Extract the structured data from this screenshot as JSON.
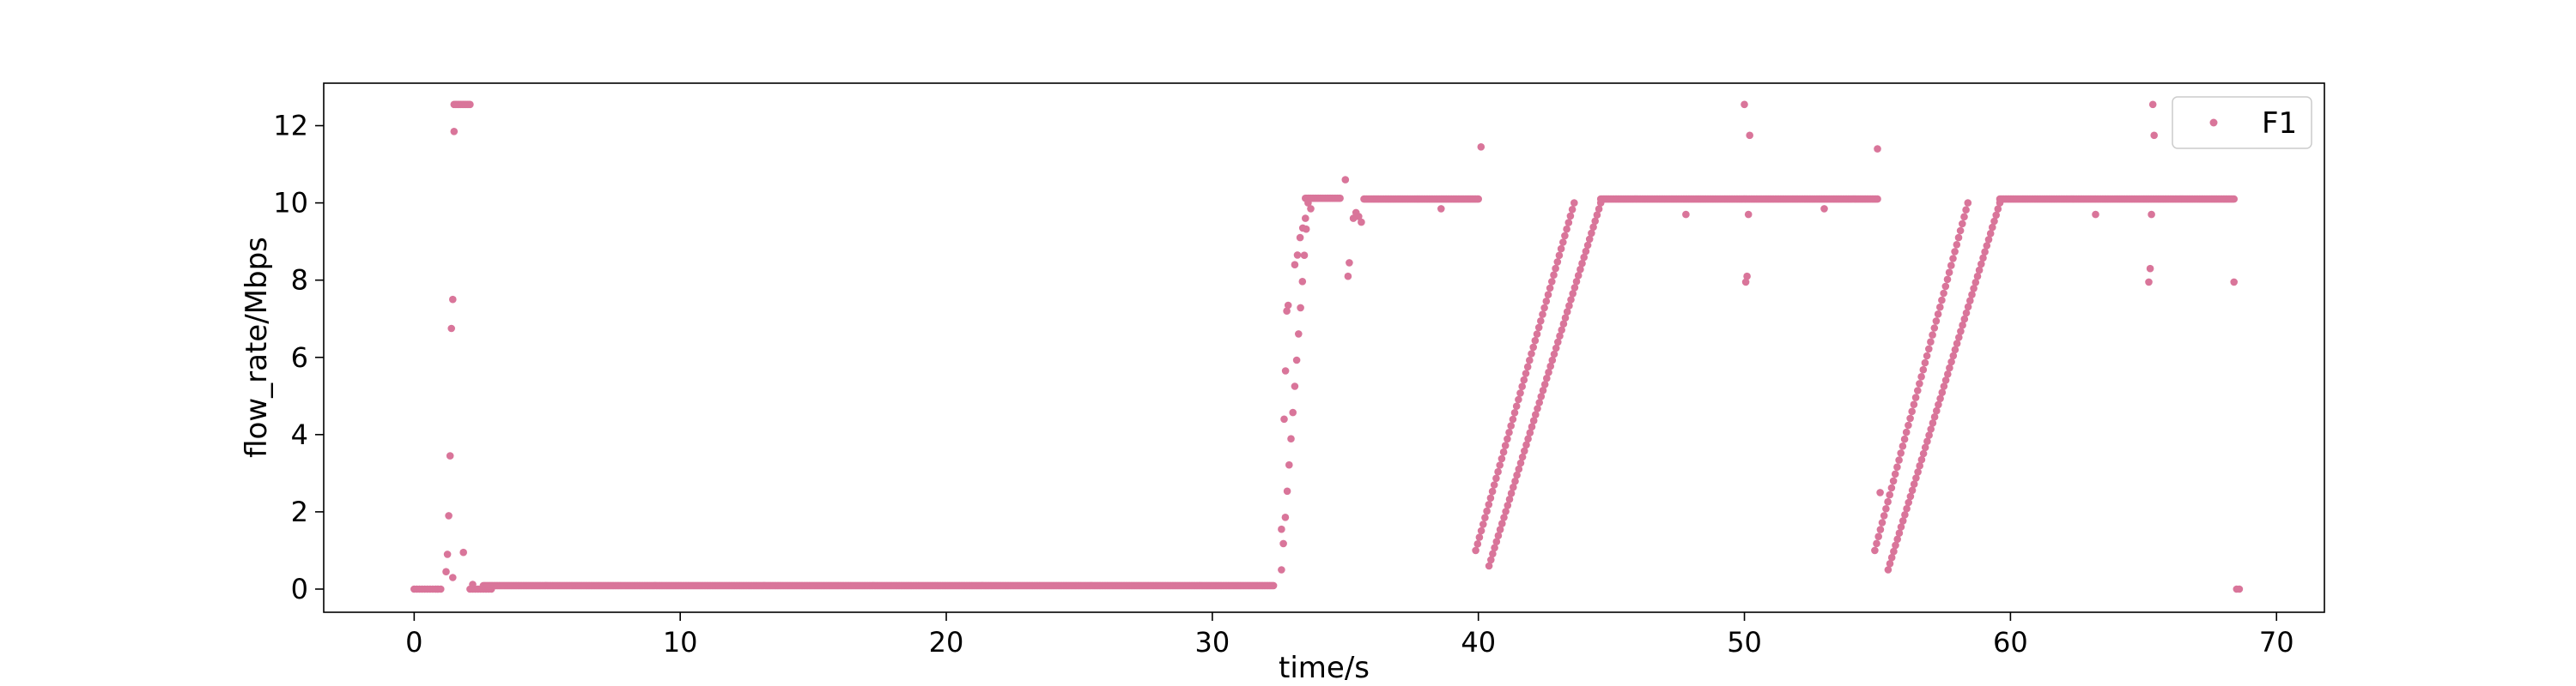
{
  "chart_data": {
    "type": "scatter",
    "title": "",
    "xlabel": "time/s",
    "ylabel": "flow_rate/Mbps",
    "xlim": [
      -3.4,
      71.8
    ],
    "ylim": [
      -0.6,
      13.1
    ],
    "xticks": [
      "0",
      "10",
      "20",
      "30",
      "40",
      "50",
      "60",
      "70"
    ],
    "yticks": [
      "0",
      "2",
      "4",
      "6",
      "8",
      "10",
      "12"
    ],
    "grid": false,
    "legend_position": "top-right",
    "colors": {
      "series": "#d9759a",
      "axes": "#000000"
    },
    "series": [
      {
        "name": "F1",
        "segments": [
          {
            "kind": "flat",
            "x0": 0.0,
            "x1": 1.0,
            "y": 0.0,
            "step": 0.1
          },
          {
            "kind": "flat",
            "x0": 1.5,
            "x1": 2.1,
            "y": 12.55,
            "step": 0.05
          },
          {
            "kind": "flat",
            "x0": 2.1,
            "x1": 2.9,
            "y": 0.0,
            "step": 0.1
          },
          {
            "kind": "flat",
            "x0": 2.6,
            "x1": 32.3,
            "y": 0.09,
            "step": 0.05
          },
          {
            "kind": "flat",
            "x0": 33.5,
            "x1": 34.8,
            "y": 10.12,
            "step": 0.05
          },
          {
            "kind": "flat",
            "x0": 35.7,
            "x1": 40.0,
            "y": 10.1,
            "step": 0.05
          },
          {
            "kind": "flat",
            "x0": 44.6,
            "x1": 55.0,
            "y": 10.1,
            "step": 0.05
          },
          {
            "kind": "flat",
            "x0": 59.6,
            "x1": 68.4,
            "y": 10.1,
            "step": 0.05
          },
          {
            "kind": "ramp",
            "x0": 32.6,
            "y0": 0.5,
            "x1": 33.6,
            "y1": 10.0,
            "step": 0.07
          },
          {
            "kind": "ramp",
            "x0": 39.9,
            "y0": 1.0,
            "x1": 43.6,
            "y1": 10.0,
            "step": 0.07
          },
          {
            "kind": "ramp",
            "x0": 40.4,
            "y0": 0.6,
            "x1": 44.6,
            "y1": 10.0,
            "step": 0.07
          },
          {
            "kind": "ramp",
            "x0": 54.9,
            "y0": 1.0,
            "x1": 58.4,
            "y1": 10.0,
            "step": 0.07
          },
          {
            "kind": "ramp",
            "x0": 55.4,
            "y0": 0.5,
            "x1": 59.6,
            "y1": 10.0,
            "step": 0.07
          }
        ],
        "points": [
          [
            1.2,
            0.45
          ],
          [
            1.25,
            0.9
          ],
          [
            1.3,
            1.9
          ],
          [
            1.35,
            3.45
          ],
          [
            1.4,
            6.75
          ],
          [
            1.45,
            7.5
          ],
          [
            1.5,
            11.85
          ],
          [
            1.45,
            0.3
          ],
          [
            1.85,
            0.95
          ],
          [
            2.2,
            0.12
          ],
          [
            32.6,
            1.55
          ],
          [
            32.7,
            4.4
          ],
          [
            32.75,
            5.65
          ],
          [
            32.8,
            7.2
          ],
          [
            32.85,
            7.35
          ],
          [
            33.1,
            8.4
          ],
          [
            33.2,
            8.65
          ],
          [
            33.3,
            9.1
          ],
          [
            33.4,
            9.35
          ],
          [
            33.5,
            9.6
          ],
          [
            33.7,
            9.85
          ],
          [
            35.0,
            10.6
          ],
          [
            35.1,
            8.1
          ],
          [
            35.15,
            8.45
          ],
          [
            35.3,
            9.6
          ],
          [
            35.4,
            9.75
          ],
          [
            35.5,
            9.65
          ],
          [
            35.6,
            9.5
          ],
          [
            38.6,
            9.85
          ],
          [
            40.1,
            11.45
          ],
          [
            47.8,
            9.7
          ],
          [
            50.0,
            12.55
          ],
          [
            50.05,
            7.95
          ],
          [
            50.1,
            8.1
          ],
          [
            50.15,
            9.7
          ],
          [
            50.2,
            11.75
          ],
          [
            53.0,
            9.85
          ],
          [
            55.0,
            11.4
          ],
          [
            55.1,
            2.5
          ],
          [
            63.2,
            9.7
          ],
          [
            65.2,
            7.95
          ],
          [
            65.25,
            8.3
          ],
          [
            65.3,
            9.7
          ],
          [
            65.35,
            12.55
          ],
          [
            65.4,
            11.75
          ],
          [
            68.4,
            7.95
          ],
          [
            68.5,
            0.0
          ],
          [
            68.6,
            0.0
          ]
        ]
      }
    ]
  }
}
